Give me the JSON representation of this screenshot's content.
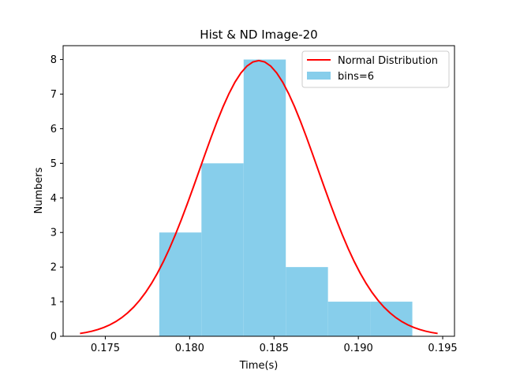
{
  "chart_data": {
    "type": "bar",
    "title": "Hist & ND Image-20",
    "xlabel": "Time(s)",
    "ylabel": "Numbers",
    "xlim": [
      0.1725,
      0.1957
    ],
    "ylim": [
      0,
      8.4
    ],
    "grid": false,
    "legend_position": "top-right",
    "x_ticks": [
      0.175,
      0.18,
      0.185,
      0.19,
      0.195
    ],
    "x_tick_labels": [
      "0.175",
      "0.180",
      "0.185",
      "0.190",
      "0.195"
    ],
    "y_ticks": [
      0,
      1,
      2,
      3,
      4,
      5,
      6,
      7,
      8
    ],
    "y_tick_labels": [
      "0",
      "1",
      "2",
      "3",
      "4",
      "5",
      "6",
      "7",
      "8"
    ],
    "histogram": {
      "name": "bins=6",
      "color": "#87ceeb",
      "bin_edges": [
        0.1782,
        0.1807,
        0.1832,
        0.1857,
        0.1882,
        0.1907,
        0.1932
      ],
      "counts": [
        3,
        5,
        8,
        2,
        1,
        1
      ]
    },
    "normal_curve": {
      "name": "Normal Distribution",
      "color": "#ff0000",
      "mean": 0.1841,
      "std": 0.0035,
      "peak": 7.97,
      "x_range": [
        0.1735,
        0.1947
      ]
    }
  }
}
